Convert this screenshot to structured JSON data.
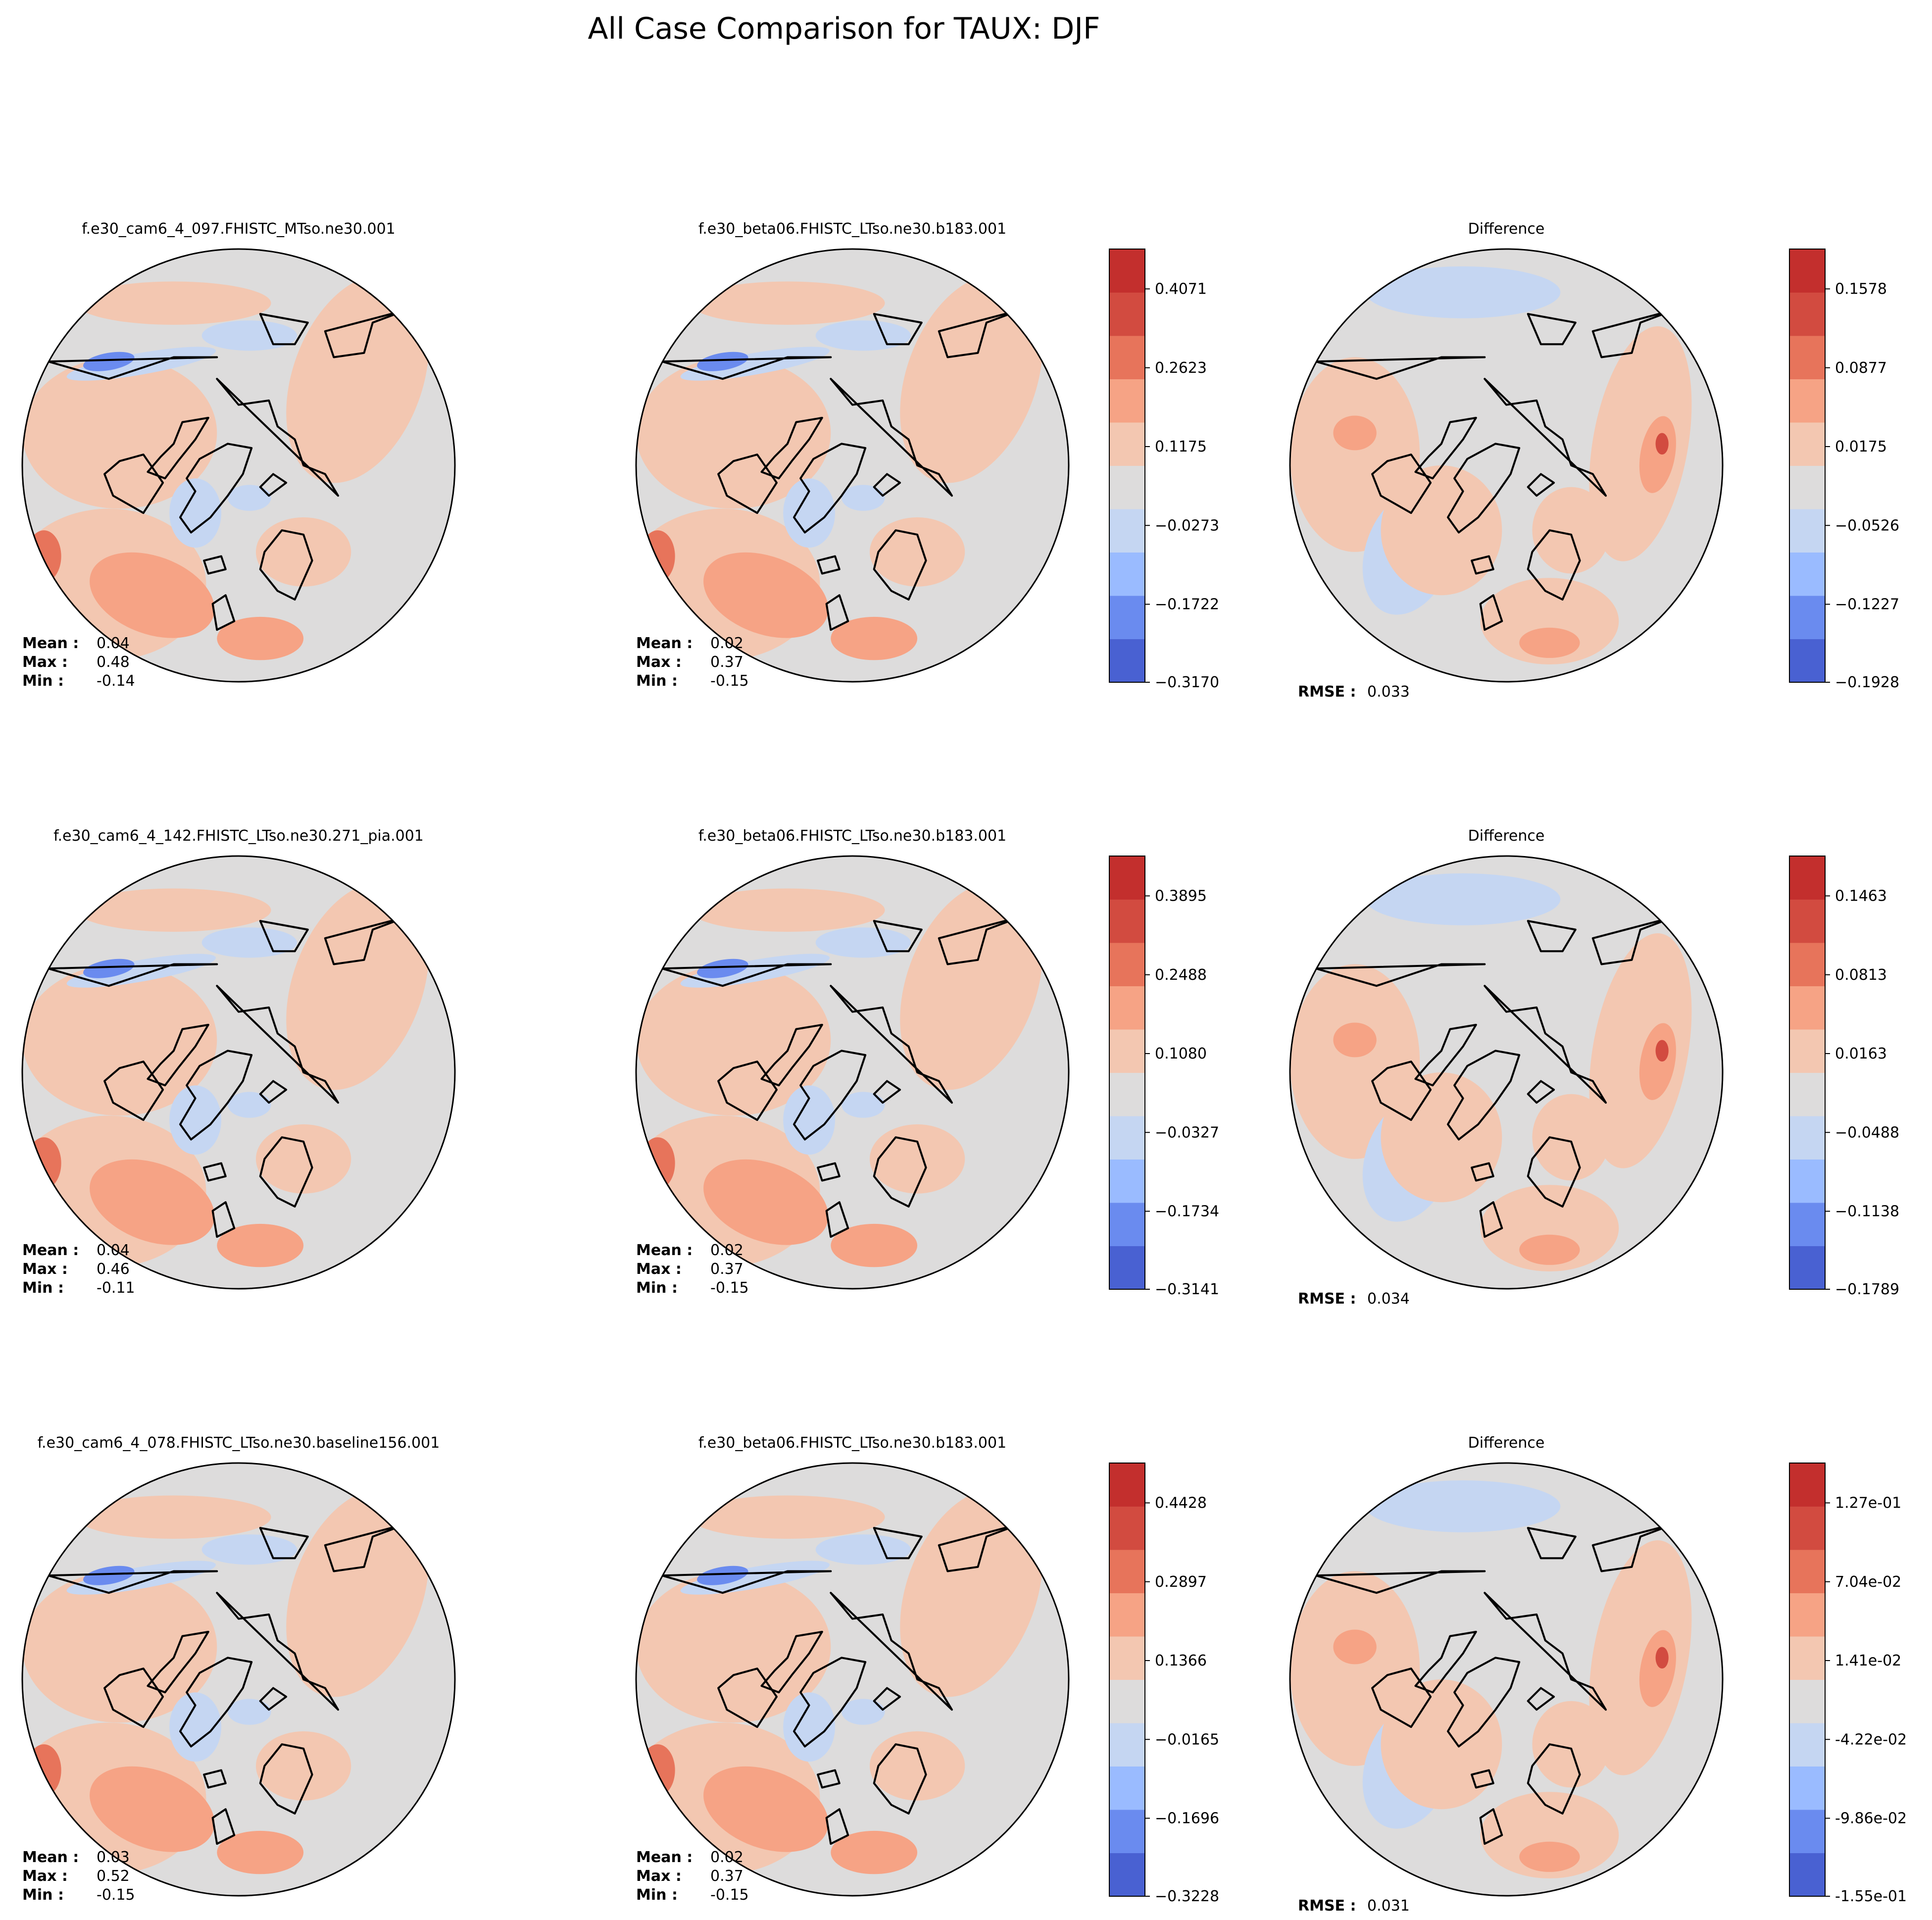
{
  "figure": {
    "title": "All Case Comparison for TAUX: DJF"
  },
  "colors": {
    "cmap": [
      "#4961d2",
      "#6a8bef",
      "#9abbff",
      "#c5d6f2",
      "#dddcdc",
      "#f3c7b1",
      "#f6a385",
      "#e7745b",
      "#d24b40",
      "#c32f2d"
    ],
    "background": "#ffffff",
    "coast": "#000000"
  },
  "rows": [
    {
      "test": {
        "title": "f.e30_cam6_4_097.FHISTC_MTso.ne30.001",
        "stats": [
          {
            "label": "Mean :",
            "value": "0.04"
          },
          {
            "label": "Max :",
            "value": "0.48"
          },
          {
            "label": "Min :",
            "value": "-0.14"
          }
        ]
      },
      "baseline": {
        "title": "f.e30_beta06.FHISTC_LTso.ne30.b183.001",
        "stats": [
          {
            "label": "Mean :",
            "value": "0.02"
          },
          {
            "label": "Max :",
            "value": "0.37"
          },
          {
            "label": "Min :",
            "value": "-0.15"
          }
        ]
      },
      "colorbar": {
        "ticks": [
          "0.4071",
          "0.2623",
          "0.1175",
          "−0.0273",
          "−0.1722",
          "−0.3170"
        ]
      },
      "difference": {
        "title": "Difference",
        "stats": [
          {
            "label": "RMSE :",
            "value": "0.033"
          }
        ]
      },
      "diff_colorbar": {
        "ticks": [
          "0.1578",
          "0.0877",
          "0.0175",
          "−0.0526",
          "−0.1227",
          "−0.1928"
        ]
      }
    },
    {
      "test": {
        "title": "f.e30_cam6_4_142.FHISTC_LTso.ne30.271_pia.001",
        "stats": [
          {
            "label": "Mean :",
            "value": "0.04"
          },
          {
            "label": "Max :",
            "value": "0.46"
          },
          {
            "label": "Min :",
            "value": "-0.11"
          }
        ]
      },
      "baseline": {
        "title": "f.e30_beta06.FHISTC_LTso.ne30.b183.001",
        "stats": [
          {
            "label": "Mean :",
            "value": "0.02"
          },
          {
            "label": "Max :",
            "value": "0.37"
          },
          {
            "label": "Min :",
            "value": "-0.15"
          }
        ]
      },
      "colorbar": {
        "ticks": [
          "0.3895",
          "0.2488",
          "0.1080",
          "−0.0327",
          "−0.1734",
          "−0.3141"
        ]
      },
      "difference": {
        "title": "Difference",
        "stats": [
          {
            "label": "RMSE :",
            "value": "0.034"
          }
        ]
      },
      "diff_colorbar": {
        "ticks": [
          "0.1463",
          "0.0813",
          "0.0163",
          "−0.0488",
          "−0.1138",
          "−0.1789"
        ]
      }
    },
    {
      "test": {
        "title": "f.e30_cam6_4_078.FHISTC_LTso.ne30.baseline156.001",
        "stats": [
          {
            "label": "Mean :",
            "value": "0.03"
          },
          {
            "label": "Max :",
            "value": "0.52"
          },
          {
            "label": "Min :",
            "value": "-0.15"
          }
        ]
      },
      "baseline": {
        "title": "f.e30_beta06.FHISTC_LTso.ne30.b183.001",
        "stats": [
          {
            "label": "Mean :",
            "value": "0.02"
          },
          {
            "label": "Max :",
            "value": "0.37"
          },
          {
            "label": "Min :",
            "value": "-0.15"
          }
        ]
      },
      "colorbar": {
        "ticks": [
          "0.4428",
          "0.2897",
          "0.1366",
          "−0.0165",
          "−0.1696",
          "−0.3228"
        ]
      },
      "difference": {
        "title": "Difference",
        "stats": [
          {
            "label": "RMSE :",
            "value": "0.031"
          }
        ]
      },
      "diff_colorbar": {
        "ticks": [
          "1.27e-01",
          "7.04e-02",
          "1.41e-02",
          "-4.22e-02",
          "-9.86e-02",
          "-1.55e-01"
        ]
      }
    }
  ]
}
